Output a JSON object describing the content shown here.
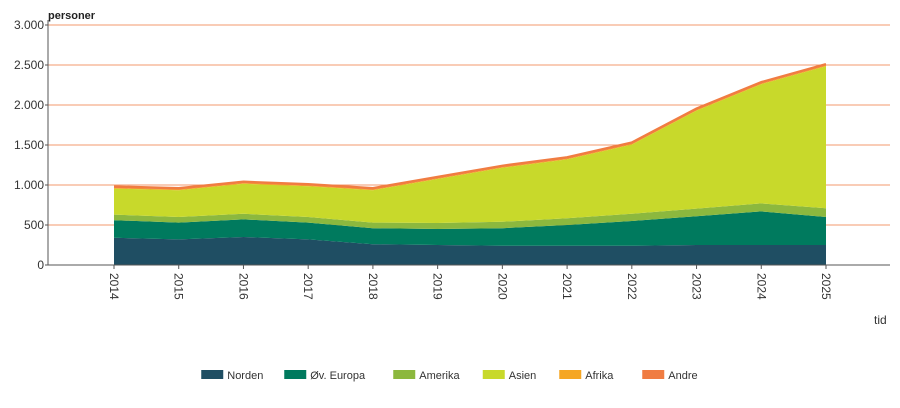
{
  "chart_data": {
    "type": "area",
    "stacked": true,
    "title": "",
    "ylabel": "personer",
    "xlabel": "tid",
    "ylim": [
      0,
      3000
    ],
    "yticks": [
      0,
      500,
      1000,
      1500,
      2000,
      2500,
      3000
    ],
    "ytick_labels": [
      "0",
      "500",
      "1.000",
      "1.500",
      "2.000",
      "2.500",
      "3.000"
    ],
    "x": [
      "2014",
      "2015",
      "2016",
      "2017",
      "2018",
      "2019",
      "2020",
      "2021",
      "2022",
      "2023",
      "2024",
      "2025"
    ],
    "grid": "horizontal",
    "legend_position": "bottom",
    "series": [
      {
        "name": "Norden",
        "color": "#1f4e63",
        "values": [
          340,
          320,
          350,
          320,
          260,
          250,
          240,
          240,
          240,
          250,
          250,
          250
        ]
      },
      {
        "name": "Øv. Europa",
        "color": "#007a5e",
        "values": [
          220,
          210,
          220,
          210,
          200,
          200,
          220,
          260,
          310,
          360,
          420,
          350
        ]
      },
      {
        "name": "Amerika",
        "color": "#8cb83e",
        "values": [
          70,
          70,
          70,
          70,
          70,
          75,
          80,
          85,
          90,
          95,
          100,
          110
        ]
      },
      {
        "name": "Asien",
        "color": "#c8d92b",
        "values": [
          325,
          335,
          375,
          385,
          405,
          550,
          675,
          735,
          865,
          1225,
          1490,
          1775
        ]
      },
      {
        "name": "Afrika",
        "color": "#f5a623",
        "values": [
          10,
          10,
          10,
          10,
          10,
          10,
          10,
          10,
          10,
          10,
          10,
          10
        ]
      },
      {
        "name": "Andre",
        "color": "#f07c42",
        "values": [
          15,
          15,
          15,
          15,
          15,
          15,
          15,
          15,
          15,
          15,
          15,
          15
        ]
      }
    ]
  },
  "colors": {
    "gridline": "#f39a6e",
    "axis": "#555555"
  }
}
